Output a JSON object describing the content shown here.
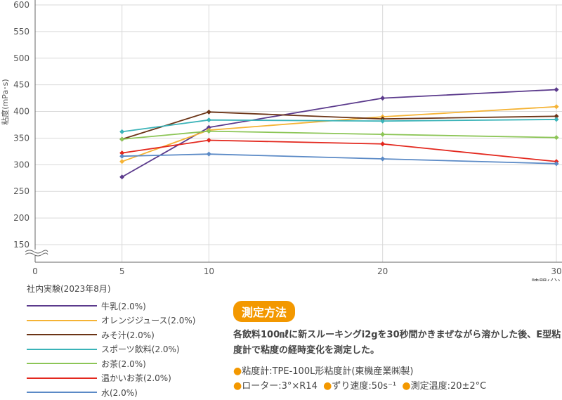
{
  "chart_data": {
    "type": "line",
    "title": "",
    "xlabel": "時間(分)",
    "ylabel": "粘度(mPa･s)",
    "x": [
      5,
      10,
      20,
      30
    ],
    "x_ticks": [
      0,
      5,
      10,
      20,
      30
    ],
    "y_ticks": [
      150,
      200,
      250,
      300,
      350,
      400,
      450,
      500,
      550,
      600
    ],
    "ylim": [
      120,
      600
    ],
    "xlim": [
      0,
      30
    ],
    "y_axis_break": true,
    "grid": true,
    "series": [
      {
        "name": "牛乳(2.0%)",
        "color": "#5b3a8c",
        "values": [
          277,
          370,
          425,
          441
        ]
      },
      {
        "name": "オレンジジュース(2.0%)",
        "color": "#f5b335",
        "values": [
          306,
          365,
          390,
          409
        ]
      },
      {
        "name": "みそ汁(2.0%)",
        "color": "#6b3416",
        "values": [
          348,
          399,
          386,
          391
        ]
      },
      {
        "name": "スポーツ飲料(2.0%)",
        "color": "#3ab3b8",
        "values": [
          362,
          384,
          382,
          385
        ]
      },
      {
        "name": "お茶(2.0%)",
        "color": "#8cc556",
        "values": [
          348,
          363,
          357,
          351
        ]
      },
      {
        "name": "温かいお茶(2.0%)",
        "color": "#e3281e",
        "values": [
          322,
          346,
          339,
          306
        ]
      },
      {
        "name": "水(2.0%)",
        "color": "#5b8ac6",
        "values": [
          316,
          320,
          311,
          302
        ]
      }
    ]
  },
  "legend": {
    "title": "社内実験(2023年8月)"
  },
  "method": {
    "badge": "測定方法",
    "desc": "各飲料100㎖に新スルーキングi2gを30秒間かきまぜながら溶かした後、E型粘度計で粘度の経時変化を測定した。",
    "line1": "粘度計:TPE-100L形粘度計(東機産業㈱製)",
    "line2a": "ローター:3°×R14",
    "line2b": "ずり速度:50s⁻¹",
    "line2c": "測定温度:20±2°C"
  }
}
